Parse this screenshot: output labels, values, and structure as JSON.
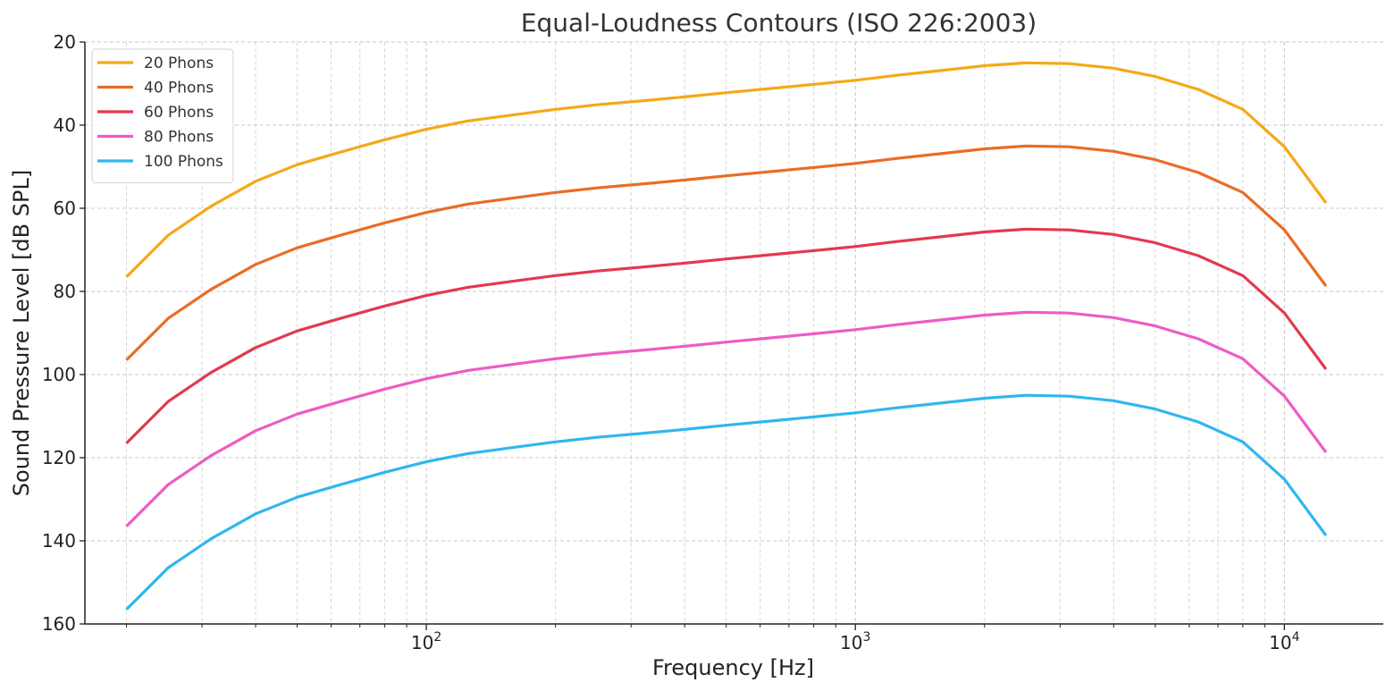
{
  "chart_data": {
    "type": "line",
    "title": "Equal-Loudness Contours (ISO 226:2003)",
    "xlabel": "Frequency [Hz]",
    "ylabel": "Sound Pressure Level [dB SPL]",
    "xscale": "log",
    "xlim": [
      16,
      17000
    ],
    "ylim": [
      160,
      20
    ],
    "y_inverted": true,
    "grid": true,
    "legend_position": "top-left",
    "x_ticks": [
      {
        "value": 100,
        "base": "10",
        "exp": "2"
      },
      {
        "value": 1000,
        "base": "10",
        "exp": "3"
      },
      {
        "value": 10000,
        "base": "10",
        "exp": "4"
      }
    ],
    "y_ticks": [
      "20",
      "40",
      "60",
      "80",
      "100",
      "120",
      "140",
      "160"
    ],
    "x": [
      20,
      25,
      31.5,
      40,
      50,
      63,
      80,
      100,
      125,
      160,
      200,
      250,
      315,
      400,
      500,
      630,
      800,
      1000,
      1250,
      1600,
      2000,
      2500,
      3150,
      4000,
      5000,
      6300,
      8000,
      10000,
      12500
    ],
    "series": [
      {
        "name": "20 Phons",
        "color": "#F5A818",
        "values": [
          76.5,
          66.5,
          59.5,
          53.5,
          49.5,
          46.5,
          43.5,
          41.0,
          39.0,
          37.5,
          36.2,
          35.1,
          34.2,
          33.2,
          32.2,
          31.2,
          30.2,
          29.2,
          28.0,
          26.8,
          25.7,
          25.0,
          25.2,
          26.3,
          28.3,
          31.4,
          36.2,
          45.2,
          58.7
        ]
      },
      {
        "name": "40 Phons",
        "color": "#EA6C26",
        "values": [
          96.5,
          86.5,
          79.5,
          73.5,
          69.5,
          66.5,
          63.5,
          61.0,
          59.0,
          57.5,
          56.2,
          55.1,
          54.2,
          53.2,
          52.2,
          51.2,
          50.2,
          49.2,
          48.0,
          46.8,
          45.7,
          45.0,
          45.2,
          46.3,
          48.3,
          51.4,
          56.2,
          65.2,
          78.7
        ]
      },
      {
        "name": "60 Phons",
        "color": "#E3394F",
        "values": [
          116.5,
          106.5,
          99.5,
          93.5,
          89.5,
          86.5,
          83.5,
          81.0,
          79.0,
          77.5,
          76.2,
          75.1,
          74.2,
          73.2,
          72.2,
          71.2,
          70.2,
          69.2,
          68.0,
          66.8,
          65.7,
          65.0,
          65.2,
          66.3,
          68.3,
          71.4,
          76.2,
          85.2,
          98.7
        ]
      },
      {
        "name": "80 Phons",
        "color": "#EE5BC5",
        "values": [
          136.5,
          126.5,
          119.5,
          113.5,
          109.5,
          106.5,
          103.5,
          101.0,
          99.0,
          97.5,
          96.2,
          95.1,
          94.2,
          93.2,
          92.2,
          91.2,
          90.2,
          89.2,
          88.0,
          86.8,
          85.7,
          85.0,
          85.2,
          86.3,
          88.3,
          91.4,
          96.2,
          105.2,
          118.7
        ]
      },
      {
        "name": "100 Phons",
        "color": "#30B6EE",
        "values": [
          156.5,
          146.5,
          139.5,
          133.5,
          129.5,
          126.5,
          123.5,
          121.0,
          119.0,
          117.5,
          116.2,
          115.1,
          114.2,
          113.2,
          112.2,
          111.2,
          110.2,
          109.2,
          108.0,
          106.8,
          105.7,
          105.0,
          105.2,
          106.3,
          108.3,
          111.4,
          116.2,
          125.2,
          138.7
        ]
      }
    ]
  }
}
